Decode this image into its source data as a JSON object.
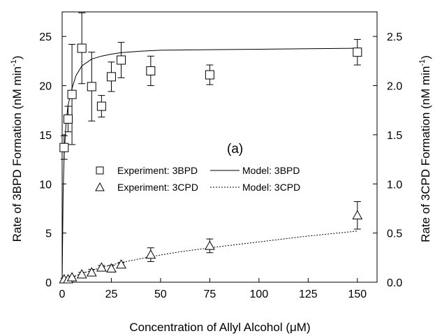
{
  "chart_data": {
    "type": "scatter",
    "annotation": "(a)",
    "xlabel": "Concentration of Allyl Alcohol (μM)",
    "ylabel_left": {
      "main": "Rate of 3BPD Formation (nM min",
      "sup": "-1",
      "end": ")"
    },
    "ylabel_right": {
      "main": "Rate of 3CPD Formation (nM min",
      "sup": "-1",
      "end": ")"
    },
    "xlim": [
      0,
      160
    ],
    "ylim_left": [
      0,
      27.5
    ],
    "ylim_right": [
      0,
      2.75
    ],
    "x_ticks": [
      "0",
      "25",
      "50",
      "75",
      "100",
      "125",
      "150"
    ],
    "y_ticks_left": [
      "0",
      "5",
      "10",
      "15",
      "20",
      "25"
    ],
    "y_ticks_right": [
      "0.0",
      "0.5",
      "1.0",
      "1.5",
      "2.0",
      "2.5"
    ],
    "series": [
      {
        "name": "Experiment: 3BPD",
        "marker": "square",
        "axis": "left",
        "points": [
          {
            "x": 1,
            "y": 13.7,
            "err": 1.2
          },
          {
            "x": 3,
            "y": 16.6,
            "err": 1.3
          },
          {
            "x": 5,
            "y": 19.1,
            "err": 5.1
          },
          {
            "x": 10,
            "y": 23.8,
            "err": 3.6
          },
          {
            "x": 15,
            "y": 19.9,
            "err": 3.5
          },
          {
            "x": 20,
            "y": 17.9,
            "err": 1.1
          },
          {
            "x": 25,
            "y": 20.9,
            "err": 1.5
          },
          {
            "x": 30,
            "y": 22.6,
            "err": 1.8
          },
          {
            "x": 45,
            "y": 21.5,
            "err": 1.5
          },
          {
            "x": 75,
            "y": 21.1,
            "err": 1.0
          },
          {
            "x": 150,
            "y": 23.4,
            "err": 1.3
          }
        ]
      },
      {
        "name": "Experiment: 3CPD",
        "marker": "triangle",
        "axis": "right",
        "points": [
          {
            "x": 1,
            "y": 0.03,
            "err": 0.01
          },
          {
            "x": 3,
            "y": 0.03,
            "err": 0.01
          },
          {
            "x": 5,
            "y": 0.05,
            "err": 0.01
          },
          {
            "x": 10,
            "y": 0.08,
            "err": 0.02
          },
          {
            "x": 15,
            "y": 0.1,
            "err": 0.03
          },
          {
            "x": 20,
            "y": 0.15,
            "err": 0.02
          },
          {
            "x": 25,
            "y": 0.14,
            "err": 0.03
          },
          {
            "x": 30,
            "y": 0.18,
            "err": 0.02
          },
          {
            "x": 45,
            "y": 0.28,
            "err": 0.07
          },
          {
            "x": 75,
            "y": 0.37,
            "err": 0.07
          },
          {
            "x": 150,
            "y": 0.68,
            "err": 0.14
          }
        ]
      },
      {
        "name": "Model: 3BPD",
        "line": "solid",
        "axis": "left",
        "points": [
          {
            "x": 0,
            "y": 0
          },
          {
            "x": 0.5,
            "y": 9.0
          },
          {
            "x": 1,
            "y": 12.8
          },
          {
            "x": 2,
            "y": 16.3
          },
          {
            "x": 3,
            "y": 18.0
          },
          {
            "x": 5,
            "y": 19.7
          },
          {
            "x": 7,
            "y": 21.0
          },
          {
            "x": 10,
            "y": 22.0
          },
          {
            "x": 15,
            "y": 22.7
          },
          {
            "x": 20,
            "y": 23.0
          },
          {
            "x": 25,
            "y": 23.2
          },
          {
            "x": 30,
            "y": 23.35
          },
          {
            "x": 40,
            "y": 23.5
          },
          {
            "x": 50,
            "y": 23.6
          },
          {
            "x": 75,
            "y": 23.65
          },
          {
            "x": 100,
            "y": 23.7
          },
          {
            "x": 125,
            "y": 23.75
          },
          {
            "x": 150,
            "y": 23.8
          }
        ]
      },
      {
        "name": "Model: 3CPD",
        "line": "dotted",
        "axis": "right",
        "points": [
          {
            "x": 0,
            "y": 0
          },
          {
            "x": 5,
            "y": 0.05
          },
          {
            "x": 10,
            "y": 0.09
          },
          {
            "x": 20,
            "y": 0.15
          },
          {
            "x": 30,
            "y": 0.2
          },
          {
            "x": 45,
            "y": 0.26
          },
          {
            "x": 60,
            "y": 0.31
          },
          {
            "x": 75,
            "y": 0.35
          },
          {
            "x": 100,
            "y": 0.41
          },
          {
            "x": 125,
            "y": 0.47
          },
          {
            "x": 150,
            "y": 0.52
          }
        ]
      }
    ],
    "legend": [
      {
        "label": "Experiment: 3BPD",
        "symbol": "square"
      },
      {
        "label": "Model: 3BPD",
        "symbol": "solid-line"
      },
      {
        "label": "Experiment: 3CPD",
        "symbol": "triangle"
      },
      {
        "label": "Model: 3CPD",
        "symbol": "dotted-line"
      }
    ]
  }
}
